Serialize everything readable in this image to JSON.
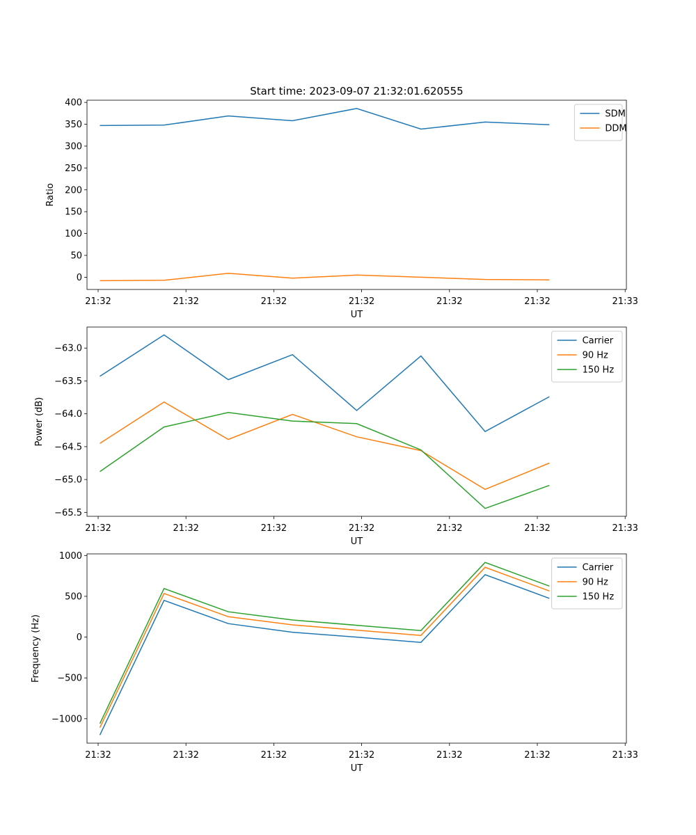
{
  "figure_title": "Start time: 2023-09-07 21:32:01.620555",
  "colors": {
    "blue": "#1f77b4",
    "orange": "#ff7f0e",
    "green": "#2ca02c"
  },
  "chart_data": [
    {
      "type": "line",
      "title": "Start time: 2023-09-07 21:32:01.620555",
      "xlabel": "UT",
      "ylabel": "Ratio",
      "x_tick_labels": [
        "21:32",
        "21:32",
        "21:32",
        "21:32",
        "21:32",
        "21:32",
        "21:33"
      ],
      "x_points": [
        1,
        2,
        3,
        4,
        5,
        6,
        7,
        8
      ],
      "xlim": [
        0.8,
        9.2
      ],
      "ylim": [
        -28,
        405
      ],
      "y_ticks": [
        0,
        50,
        100,
        150,
        200,
        250,
        300,
        350,
        400
      ],
      "legend_position": "upper right",
      "series": [
        {
          "name": "SDM",
          "color": "#1f77b4",
          "values": [
            347,
            348,
            369,
            358,
            386,
            339,
            355,
            349
          ]
        },
        {
          "name": "DDM",
          "color": "#ff7f0e",
          "values": [
            -8,
            -7,
            9,
            -2,
            5,
            0,
            -5,
            -6
          ]
        }
      ]
    },
    {
      "type": "line",
      "title": "",
      "xlabel": "UT",
      "ylabel": "Power (dB)",
      "x_tick_labels": [
        "21:32",
        "21:32",
        "21:32",
        "21:32",
        "21:32",
        "21:32",
        "21:33"
      ],
      "x_points": [
        1,
        2,
        3,
        4,
        5,
        6,
        7,
        8
      ],
      "xlim": [
        0.8,
        9.2
      ],
      "ylim": [
        -65.56,
        -62.68
      ],
      "y_ticks": [
        -65.5,
        -65.0,
        -64.5,
        -64.0,
        -63.5,
        -63.0
      ],
      "y_tick_labels": [
        "−65.5",
        "−65.0",
        "−64.5",
        "−64.0",
        "−63.5",
        "−63.0"
      ],
      "legend_position": "upper right",
      "series": [
        {
          "name": "Carrier",
          "color": "#1f77b4",
          "values": [
            -63.43,
            -62.8,
            -63.48,
            -63.1,
            -63.95,
            -63.12,
            -64.27,
            -63.74
          ]
        },
        {
          "name": "90 Hz",
          "color": "#ff7f0e",
          "values": [
            -64.45,
            -63.82,
            -64.39,
            -64.01,
            -64.35,
            -64.56,
            -65.15,
            -64.75
          ]
        },
        {
          "name": "150 Hz",
          "color": "#2ca02c",
          "values": [
            -64.88,
            -64.2,
            -63.98,
            -64.11,
            -64.15,
            -64.55,
            -65.44,
            -65.09
          ]
        }
      ]
    },
    {
      "type": "line",
      "title": "",
      "xlabel": "UT",
      "ylabel": "Frequency (Hz)",
      "x_tick_labels": [
        "21:32",
        "21:32",
        "21:32",
        "21:32",
        "21:32",
        "21:32",
        "21:33"
      ],
      "x_points": [
        1,
        2,
        3,
        4,
        5,
        6,
        7,
        8
      ],
      "xlim": [
        0.8,
        9.2
      ],
      "ylim": [
        -1300,
        1020
      ],
      "y_ticks": [
        -1000,
        -500,
        0,
        500,
        1000
      ],
      "y_tick_labels": [
        "−1000",
        "−500",
        "0",
        "500",
        "1000"
      ],
      "legend_position": "upper right",
      "series": [
        {
          "name": "Carrier",
          "color": "#1f77b4",
          "values": [
            -1200,
            450,
            165,
            60,
            0,
            -65,
            765,
            475
          ]
        },
        {
          "name": "90 Hz",
          "color": "#ff7f0e",
          "values": [
            -1110,
            535,
            250,
            150,
            85,
            20,
            855,
            565
          ]
        },
        {
          "name": "150 Hz",
          "color": "#2ca02c",
          "values": [
            -1060,
            595,
            310,
            210,
            145,
            80,
            915,
            625
          ]
        }
      ]
    }
  ]
}
